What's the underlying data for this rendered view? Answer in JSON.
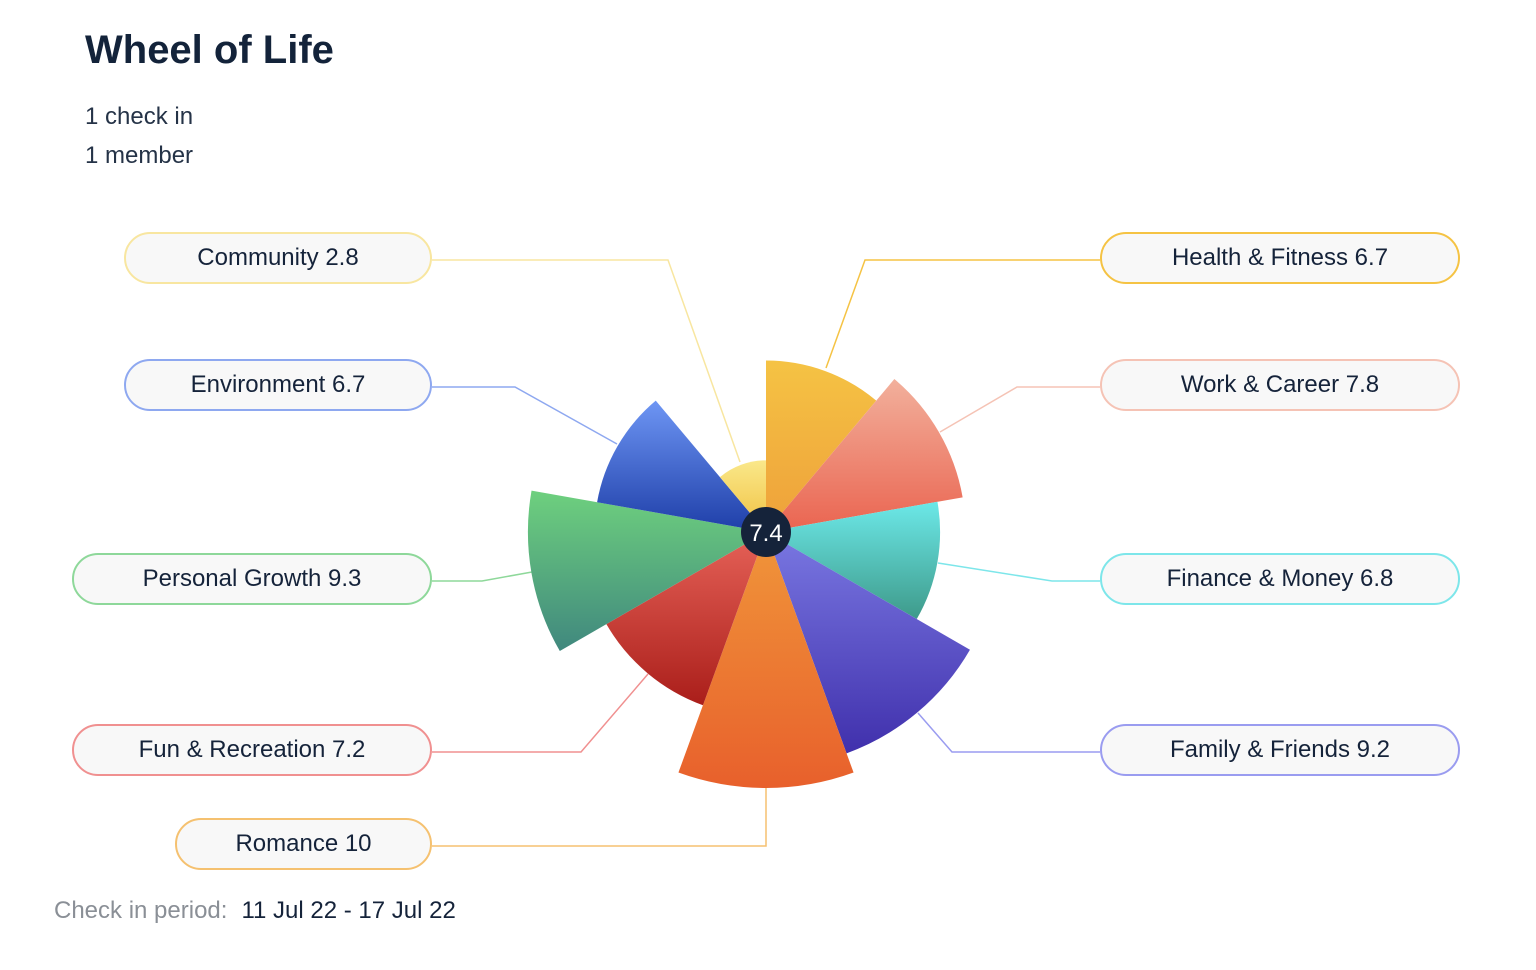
{
  "title": "Wheel of Life",
  "check_ins": "1 check in",
  "members": "1 member",
  "footer": {
    "label": "Check in period:",
    "value": "11 Jul 22 - 17 Jul 22"
  },
  "chart_data": {
    "type": "polar-area",
    "center_value": "7.4",
    "rlim": [
      0,
      10
    ],
    "categories": [
      {
        "name": "Health & Fitness",
        "value": 6.7,
        "label": "Health & Fitness 6.7",
        "colors": [
          "#f5c344",
          "#eea03a"
        ],
        "line": "#f5c344"
      },
      {
        "name": "Work & Career",
        "value": 7.8,
        "label": "Work & Career 7.8",
        "colors": [
          "#f2b09c",
          "#ea6450"
        ],
        "line": "#f5c3b5"
      },
      {
        "name": "Finance & Money",
        "value": 6.8,
        "label": "Finance & Money 6.8",
        "colors": [
          "#6ce8e8",
          "#3e9a8a"
        ],
        "line": "#7de6ea"
      },
      {
        "name": "Family & Friends",
        "value": 9.2,
        "label": "Family & Friends 9.2",
        "colors": [
          "#7a78e2",
          "#4030ac"
        ],
        "line": "#9a9cf0"
      },
      {
        "name": "Romance",
        "value": 10,
        "label": "Romance 10",
        "colors": [
          "#f0963a",
          "#e8602c"
        ],
        "line": "#f5c170"
      },
      {
        "name": "Fun & Recreation",
        "value": 7.2,
        "label": "Fun & Recreation 7.2",
        "colors": [
          "#e66258",
          "#aa1e1a"
        ],
        "line": "#f09090"
      },
      {
        "name": "Personal Growth",
        "value": 9.3,
        "label": "Personal Growth 9.3",
        "colors": [
          "#6ed07e",
          "#40887e"
        ],
        "line": "#8ed89a"
      },
      {
        "name": "Environment",
        "value": 6.7,
        "label": "Environment 6.7",
        "colors": [
          "#6e96f4",
          "#1e3ea8"
        ],
        "line": "#8ea8f0"
      },
      {
        "name": "Community",
        "value": 2.8,
        "label": "Community 2.8",
        "colors": [
          "#fae88a",
          "#f0c040"
        ],
        "line": "#f8e6a0"
      }
    ]
  }
}
